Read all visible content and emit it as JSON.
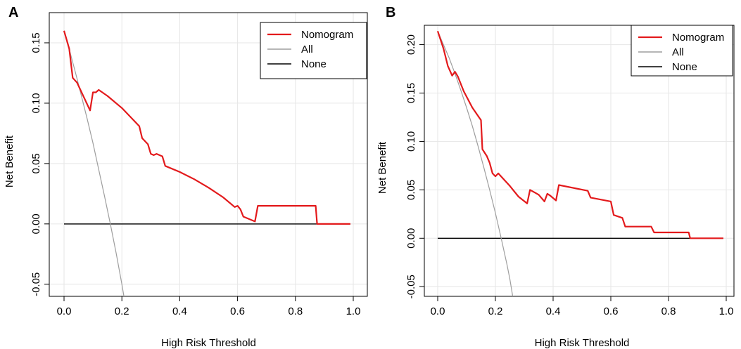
{
  "chart_data": [
    {
      "panel": "A",
      "type": "line",
      "xlabel": "High Risk Threshold",
      "ylabel": "Net Benefit",
      "xlim": [
        0,
        1
      ],
      "ylim": [
        -0.06,
        0.175
      ],
      "grid": true,
      "legend_position": "top-right",
      "x_ticks": [
        0,
        0.2,
        0.4,
        0.6,
        0.8,
        1.0
      ],
      "x_tick_labels": [
        "0.0",
        "0.2",
        "0.4",
        "0.6",
        "0.8",
        "1.0"
      ],
      "y_ticks": [
        -0.05,
        0,
        0.05,
        0.1,
        0.15
      ],
      "y_tick_labels": [
        "-0.05",
        "0.00",
        "0.05",
        "0.10",
        "0.15"
      ],
      "series": [
        {
          "name": "Nomogram",
          "color": "#e31a1c",
          "points": [
            [
              0,
              0.16
            ],
            [
              0.018,
              0.145
            ],
            [
              0.03,
              0.121
            ],
            [
              0.045,
              0.117
            ],
            [
              0.09,
              0.094
            ],
            [
              0.1,
              0.109
            ],
            [
              0.11,
              0.109
            ],
            [
              0.12,
              0.111
            ],
            [
              0.15,
              0.106
            ],
            [
              0.2,
              0.096
            ],
            [
              0.26,
              0.081
            ],
            [
              0.27,
              0.071
            ],
            [
              0.29,
              0.066
            ],
            [
              0.3,
              0.058
            ],
            [
              0.31,
              0.057
            ],
            [
              0.32,
              0.058
            ],
            [
              0.34,
              0.056
            ],
            [
              0.35,
              0.048
            ],
            [
              0.4,
              0.043
            ],
            [
              0.45,
              0.037
            ],
            [
              0.5,
              0.03
            ],
            [
              0.55,
              0.022
            ],
            [
              0.59,
              0.014
            ],
            [
              0.6,
              0.015
            ],
            [
              0.61,
              0.012
            ],
            [
              0.62,
              0.006
            ],
            [
              0.66,
              0.002
            ],
            [
              0.67,
              0.015
            ],
            [
              0.87,
              0.015
            ],
            [
              0.875,
              0.0
            ],
            [
              0.99,
              0.0
            ]
          ]
        },
        {
          "name": "All",
          "color": "#9e9e9e",
          "points": [
            [
              0.0,
              0.16
            ],
            [
              0.02,
              0.143
            ],
            [
              0.04,
              0.125
            ],
            [
              0.06,
              0.106
            ],
            [
              0.08,
              0.087
            ],
            [
              0.1,
              0.067
            ],
            [
              0.12,
              0.045
            ],
            [
              0.14,
              0.023
            ],
            [
              0.16,
              0.0
            ],
            [
              0.18,
              -0.024
            ],
            [
              0.2,
              -0.05
            ],
            [
              0.207,
              -0.06
            ]
          ]
        },
        {
          "name": "None",
          "color": "#000000",
          "points": [
            [
              0,
              0
            ],
            [
              0.99,
              0
            ]
          ]
        }
      ]
    },
    {
      "panel": "B",
      "type": "line",
      "xlabel": "High Risk Threshold",
      "ylabel": "Net Benefit",
      "xlim": [
        0,
        1
      ],
      "ylim": [
        -0.06,
        0.22
      ],
      "grid": true,
      "legend_position": "top-right",
      "x_ticks": [
        0,
        0.2,
        0.4,
        0.6,
        0.8,
        1.0
      ],
      "x_tick_labels": [
        "0.0",
        "0.2",
        "0.4",
        "0.6",
        "0.8",
        "1.0"
      ],
      "y_ticks": [
        -0.05,
        0,
        0.05,
        0.1,
        0.15,
        0.2
      ],
      "y_tick_labels": [
        "-0.05",
        "0.00",
        "0.05",
        "0.10",
        "0.15",
        "0.20"
      ],
      "series": [
        {
          "name": "Nomogram",
          "color": "#e31a1c",
          "points": [
            [
              0,
              0.214
            ],
            [
              0.02,
              0.196
            ],
            [
              0.035,
              0.178
            ],
            [
              0.05,
              0.168
            ],
            [
              0.06,
              0.172
            ],
            [
              0.07,
              0.167
            ],
            [
              0.09,
              0.152
            ],
            [
              0.12,
              0.135
            ],
            [
              0.15,
              0.122
            ],
            [
              0.155,
              0.092
            ],
            [
              0.17,
              0.085
            ],
            [
              0.18,
              0.078
            ],
            [
              0.19,
              0.067
            ],
            [
              0.2,
              0.064
            ],
            [
              0.21,
              0.067
            ],
            [
              0.25,
              0.054
            ],
            [
              0.28,
              0.043
            ],
            [
              0.31,
              0.036
            ],
            [
              0.32,
              0.05
            ],
            [
              0.35,
              0.045
            ],
            [
              0.37,
              0.038
            ],
            [
              0.38,
              0.046
            ],
            [
              0.39,
              0.044
            ],
            [
              0.41,
              0.039
            ],
            [
              0.42,
              0.055
            ],
            [
              0.52,
              0.049
            ],
            [
              0.53,
              0.042
            ],
            [
              0.6,
              0.038
            ],
            [
              0.61,
              0.024
            ],
            [
              0.64,
              0.021
            ],
            [
              0.65,
              0.012
            ],
            [
              0.74,
              0.012
            ],
            [
              0.75,
              0.006
            ],
            [
              0.87,
              0.006
            ],
            [
              0.875,
              0.0
            ],
            [
              0.99,
              0.0
            ]
          ]
        },
        {
          "name": "All",
          "color": "#9e9e9e",
          "points": [
            [
              0.0,
              0.214
            ],
            [
              0.02,
              0.2
            ],
            [
              0.04,
              0.186
            ],
            [
              0.06,
              0.17
            ],
            [
              0.08,
              0.153
            ],
            [
              0.1,
              0.135
            ],
            [
              0.12,
              0.116
            ],
            [
              0.14,
              0.095
            ],
            [
              0.16,
              0.073
            ],
            [
              0.18,
              0.05
            ],
            [
              0.2,
              0.026
            ],
            [
              0.22,
              0.0
            ],
            [
              0.24,
              -0.027
            ],
            [
              0.25,
              -0.042
            ],
            [
              0.26,
              -0.06
            ]
          ]
        },
        {
          "name": "None",
          "color": "#000000",
          "points": [
            [
              0,
              0
            ],
            [
              0.99,
              0
            ]
          ]
        }
      ]
    }
  ]
}
